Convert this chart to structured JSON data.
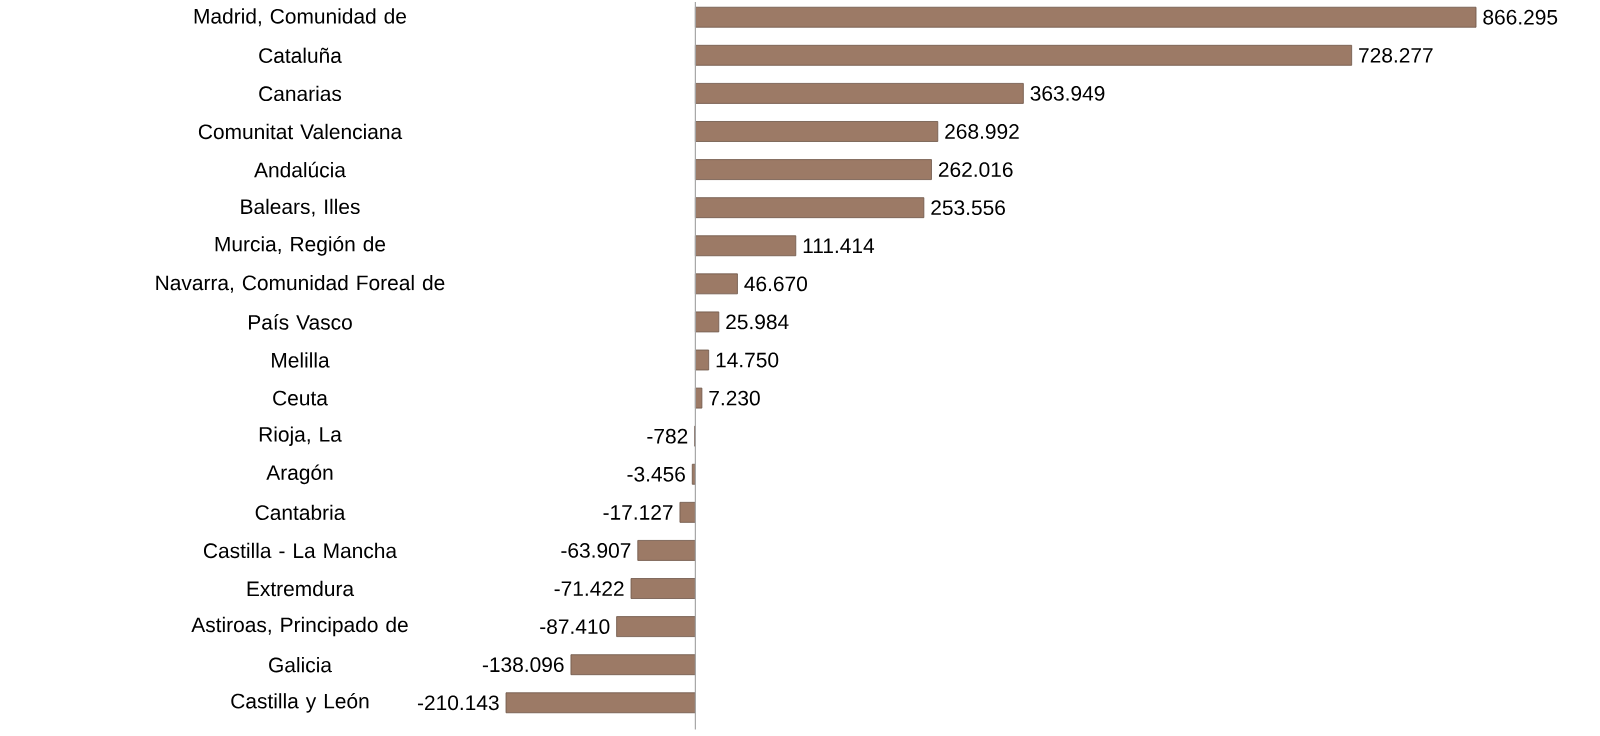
{
  "chart_data": {
    "type": "bar",
    "orientation": "horizontal",
    "color": "#9c7a66",
    "categories": [
      "Madrid, Comunidad de",
      "Cataluña",
      "Canarias",
      "Comunitat Valenciana",
      "Andalúcia",
      "Balears, Illes",
      "Murcia, Región de",
      "Navarra, Comunidad Foreal de",
      "País Vasco",
      "Melilla",
      "Ceuta",
      "Rioja, La",
      "Aragón",
      "Cantabria",
      "Castilla - La Mancha",
      "Extremdura",
      "Astiroas, Principado de",
      "Galicia",
      "Castilla y León"
    ],
    "values": [
      866295,
      728277,
      363949,
      268992,
      262016,
      253556,
      111414,
      46670,
      25984,
      14750,
      7230,
      -782,
      -3456,
      -17127,
      -63907,
      -71422,
      -87410,
      -138096,
      -210143
    ],
    "value_labels": [
      "866.295",
      "728.277",
      "363.949",
      "268.992",
      "262.016",
      "253.556",
      "111.414",
      "46.670",
      "25.984",
      "14.750",
      "7.230",
      "-782",
      "-3.456",
      "-17.127",
      "-63.907",
      "-71.422",
      "-87.410",
      "-138.096",
      "-210.143"
    ]
  }
}
